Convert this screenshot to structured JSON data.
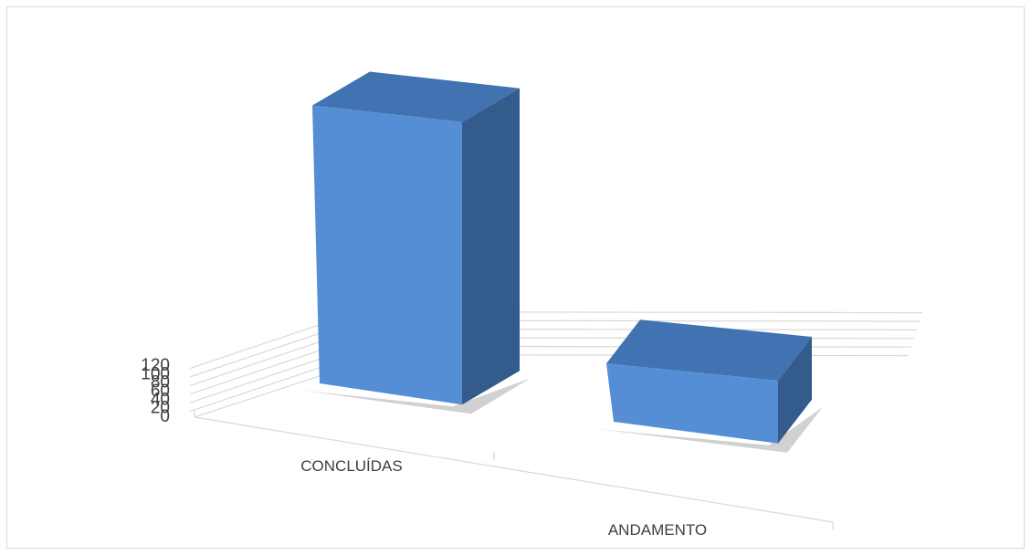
{
  "chart_data": {
    "type": "bar",
    "style": "3d-column",
    "title": "",
    "xlabel": "",
    "ylabel": "",
    "categories": [
      "CONCLUÍDAS",
      "ANDAMENTO"
    ],
    "series": [
      {
        "values": [
          105,
          22
        ]
      }
    ],
    "ylim": [
      0,
      120
    ],
    "yticks": [
      0,
      20,
      40,
      60,
      80,
      100,
      120
    ],
    "grid": true,
    "legend": "none",
    "colors": {
      "front": "#558ed5",
      "side": "#335b8c",
      "top": "#4172b1",
      "grid": "#d9d9d9",
      "text": "#404040",
      "border": "#d9d9d9"
    }
  }
}
